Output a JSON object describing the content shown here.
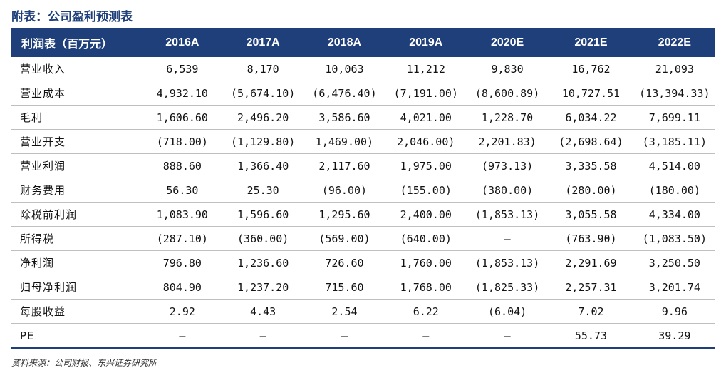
{
  "title": "附表：公司盈利预测表",
  "table": {
    "headers": [
      "利润表（百万元）",
      "2016A",
      "2017A",
      "2018A",
      "2019A",
      "2020E",
      "2021E",
      "2022E"
    ],
    "rows": [
      {
        "label": "营业收入",
        "values": [
          "6,539",
          "8,170",
          "10,063",
          "11,212",
          "9,830",
          "16,762",
          "21,093"
        ]
      },
      {
        "label": "营业成本",
        "values": [
          "4,932.10",
          "(5,674.10)",
          "(6,476.40)",
          "(7,191.00)",
          "(8,600.89)",
          "10,727.51",
          "(13,394.33)"
        ]
      },
      {
        "label": "毛利",
        "values": [
          "1,606.60",
          "2,496.20",
          "3,586.60",
          "4,021.00",
          "1,228.70",
          "6,034.22",
          "7,699.11"
        ]
      },
      {
        "label": "营业开支",
        "values": [
          "(718.00)",
          "(1,129.80)",
          "1,469.00)",
          "2,046.00)",
          "2,201.83)",
          "(2,698.64)",
          "(3,185.11)"
        ]
      },
      {
        "label": "营业利润",
        "values": [
          "888.60",
          "1,366.40",
          "2,117.60",
          "1,975.00",
          "(973.13)",
          "3,335.58",
          "4,514.00"
        ]
      },
      {
        "label": "财务费用",
        "values": [
          "56.30",
          "25.30",
          "(96.00)",
          "(155.00)",
          "(380.00)",
          "(280.00)",
          "(180.00)"
        ]
      },
      {
        "label": "除税前利润",
        "values": [
          "1,083.90",
          "1,596.60",
          "1,295.60",
          "2,400.00",
          "(1,853.13)",
          "3,055.58",
          "4,334.00"
        ]
      },
      {
        "label": "所得税",
        "values": [
          "(287.10)",
          "(360.00)",
          "(569.00)",
          "(640.00)",
          "–",
          "(763.90)",
          "(1,083.50)"
        ]
      },
      {
        "label": "净利润",
        "values": [
          "796.80",
          "1,236.60",
          "726.60",
          "1,760.00",
          "(1,853.13)",
          "2,291.69",
          "3,250.50"
        ]
      },
      {
        "label": "归母净利润",
        "values": [
          "804.90",
          "1,237.20",
          "715.60",
          "1,768.00",
          "(1,825.33)",
          "2,257.31",
          "3,201.74"
        ]
      },
      {
        "label": "每股收益",
        "values": [
          "2.92",
          "4.43",
          "2.54",
          "6.22",
          "(6.04)",
          "7.02",
          "9.96"
        ]
      },
      {
        "label": "PE",
        "values": [
          "–",
          "–",
          "–",
          "–",
          "–",
          "55.73",
          "39.29"
        ]
      }
    ]
  },
  "source": "资料来源：公司财报、东兴证券研究所",
  "colors": {
    "header_bg": "#1f3f7a",
    "title": "#1f3f7a",
    "header_text": "#ffffff"
  }
}
